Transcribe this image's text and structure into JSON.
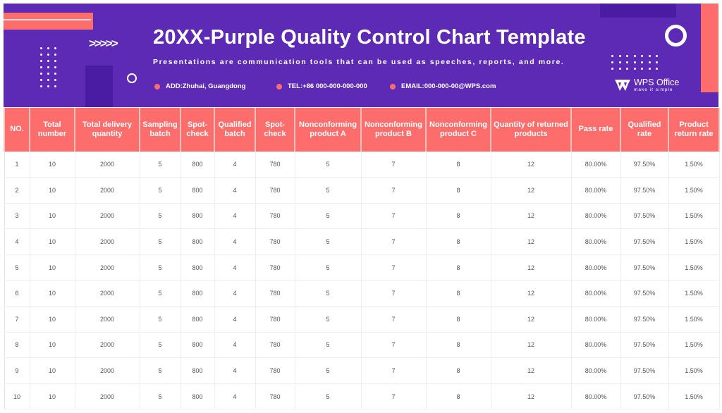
{
  "header": {
    "title": "20XX-Purple Quality Control Chart Template",
    "subtitle": "Presentations are communication tools that can be used as speeches, reports, and more.",
    "decor_chevrons": ">>>>>",
    "contacts": [
      {
        "icon": "dot-bullet-icon",
        "text": "ADD:Zhuhai, Guangdong"
      },
      {
        "icon": "dot-bullet-icon",
        "text": "TEL:+86 000-000-000-000"
      },
      {
        "icon": "dot-bullet-icon",
        "text": "EMAIL:000-000-00@WPS.com"
      }
    ],
    "logo": {
      "name": "WPS Office",
      "tagline": "make it simple"
    }
  },
  "colors": {
    "banner": "#5d2ab5",
    "banner_dark": "#4a1ca3",
    "accent_coral": "#fd6d6c",
    "text_white": "#ffffff",
    "cell_text": "#555555"
  },
  "table": {
    "columns": [
      "NO.",
      "Total number",
      "Total delivery quantity",
      "Sampling batch",
      "Spot-check",
      "Qualified batch",
      "Spot-check",
      "Nonconforming product A",
      "Nonconforming product B",
      "Nonconforming product C",
      "Quantity of returned products",
      "Pass rate",
      "Qualified rate",
      "Product return rate"
    ],
    "rows": [
      [
        "1",
        "10",
        "2000",
        "5",
        "800",
        "4",
        "780",
        "5",
        "7",
        "8",
        "12",
        "80.00%",
        "97.50%",
        "1.50%"
      ],
      [
        "2",
        "10",
        "2000",
        "5",
        "800",
        "4",
        "780",
        "5",
        "7",
        "8",
        "12",
        "80.00%",
        "97.50%",
        "1.50%"
      ],
      [
        "3",
        "10",
        "2000",
        "5",
        "800",
        "4",
        "780",
        "5",
        "7",
        "8",
        "12",
        "80.00%",
        "97.50%",
        "1.50%"
      ],
      [
        "4",
        "10",
        "2000",
        "5",
        "800",
        "4",
        "780",
        "5",
        "7",
        "8",
        "12",
        "80.00%",
        "97.50%",
        "1.50%"
      ],
      [
        "5",
        "10",
        "2000",
        "5",
        "800",
        "4",
        "780",
        "5",
        "7",
        "8",
        "12",
        "80.00%",
        "97.50%",
        "1.50%"
      ],
      [
        "6",
        "10",
        "2000",
        "5",
        "800",
        "4",
        "780",
        "5",
        "7",
        "8",
        "12",
        "80.00%",
        "97.50%",
        "1.50%"
      ],
      [
        "7",
        "10",
        "2000",
        "5",
        "800",
        "4",
        "780",
        "5",
        "7",
        "8",
        "12",
        "80.00%",
        "97.50%",
        "1.50%"
      ],
      [
        "8",
        "10",
        "2000",
        "5",
        "800",
        "4",
        "780",
        "5",
        "7",
        "8",
        "12",
        "80.00%",
        "97.50%",
        "1.50%"
      ],
      [
        "9",
        "10",
        "2000",
        "5",
        "800",
        "4",
        "780",
        "5",
        "7",
        "8",
        "12",
        "80.00%",
        "97.50%",
        "1.50%"
      ],
      [
        "10",
        "10",
        "2000",
        "5",
        "800",
        "4",
        "780",
        "5",
        "7",
        "8",
        "12",
        "80.00%",
        "97.50%",
        "1.50%"
      ]
    ]
  }
}
